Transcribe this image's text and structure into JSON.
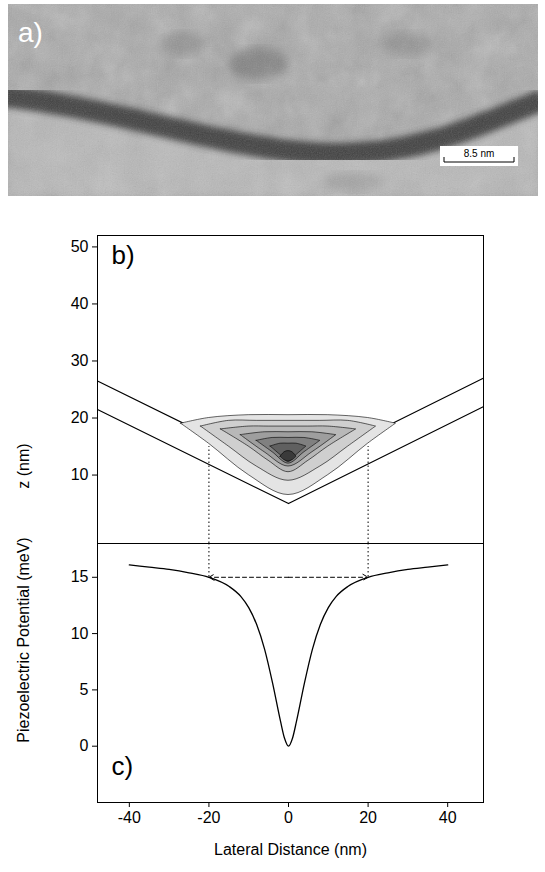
{
  "chart_data": [
    {
      "type": "image",
      "label": "a)",
      "scale_bar": "8.5 nm"
    },
    {
      "type": "contour",
      "label": "b)",
      "ylabel": "z (nm)",
      "xlim": [
        -48,
        49
      ],
      "ylim": [
        -2,
        52
      ],
      "yticks": [
        10,
        20,
        30,
        40,
        50
      ],
      "tick_labels": "y",
      "groove": {
        "x": [
          -48,
          0,
          49
        ],
        "upper": [
          26.5,
          10,
          27
        ],
        "lower": [
          21.5,
          5,
          22
        ]
      },
      "guides": {
        "x": [
          -20,
          20
        ],
        "z_top": 15
      },
      "contours": [
        {
          "color": "#e4e4e4",
          "x": [
            -27,
            -20,
            -10,
            0,
            10,
            20,
            27
          ],
          "top": [
            19,
            20,
            20.5,
            20.5,
            20.5,
            20,
            19
          ],
          "bottom": [
            19,
            15.5,
            10,
            6.5,
            10,
            15.5,
            19
          ]
        },
        {
          "color": "#cfcfcf",
          "x": [
            -22,
            -15,
            -8,
            0,
            8,
            15,
            22
          ],
          "top": [
            18.5,
            19.5,
            19.5,
            19.5,
            19.5,
            19.5,
            18.5
          ],
          "bottom": [
            18.5,
            15,
            11.5,
            9,
            11.5,
            15,
            18.5
          ]
        },
        {
          "color": "#b8b8b8",
          "x": [
            -17,
            -10,
            -5,
            0,
            5,
            10,
            17
          ],
          "top": [
            18,
            18.5,
            18.5,
            18.5,
            18.5,
            18.5,
            18
          ],
          "bottom": [
            18,
            15,
            12.5,
            10.5,
            12.5,
            15,
            18
          ]
        },
        {
          "color": "#9e9e9e",
          "x": [
            -12,
            -6,
            0,
            6,
            12
          ],
          "top": [
            17,
            17.5,
            17.5,
            17.5,
            17
          ],
          "bottom": [
            17,
            14,
            11.5,
            14,
            17
          ]
        },
        {
          "color": "#808080",
          "x": [
            -8,
            -4,
            0,
            4,
            8
          ],
          "top": [
            16,
            16.5,
            16.5,
            16.5,
            16
          ],
          "bottom": [
            16,
            14,
            12,
            14,
            16
          ]
        },
        {
          "color": "#606060",
          "x": [
            -4.5,
            -2,
            0,
            2,
            4.5
          ],
          "top": [
            15,
            15.5,
            15.5,
            15.5,
            15
          ],
          "bottom": [
            15,
            13.5,
            12.3,
            13.5,
            15
          ]
        },
        {
          "color": "#3a3a3a",
          "x": [
            -2,
            -1,
            0,
            1,
            2
          ],
          "top": [
            13.2,
            14,
            14.2,
            14,
            13.2
          ],
          "bottom": [
            13.2,
            12.6,
            12.4,
            12.6,
            13.2
          ]
        }
      ]
    },
    {
      "type": "line",
      "label": "c)",
      "xlabel": "Lateral Distance (nm)",
      "ylabel": "Piezoelectric Potential (meV)",
      "xlim": [
        -48,
        49
      ],
      "xticks": [
        -40,
        -20,
        0,
        20,
        40
      ],
      "ylim": [
        -5,
        18
      ],
      "yticks": [
        0,
        5,
        10,
        15
      ],
      "x": [
        -40,
        -35,
        -30,
        -25,
        -20,
        -15,
        -12,
        -10,
        -8,
        -6,
        -4,
        -2,
        -1,
        0,
        1,
        2,
        4,
        6,
        8,
        10,
        12,
        15,
        20,
        25,
        30,
        35,
        40
      ],
      "values": [
        16.1,
        15.9,
        15.7,
        15.4,
        15.0,
        14.2,
        13.3,
        12.3,
        10.8,
        8.6,
        5.6,
        2.2,
        0.7,
        0,
        0.7,
        2.2,
        5.6,
        8.6,
        10.8,
        12.3,
        13.3,
        14.2,
        15.0,
        15.4,
        15.7,
        15.9,
        16.1
      ],
      "color": "#000000",
      "arrow": {
        "x": [
          -20,
          20
        ],
        "y": 15
      }
    }
  ]
}
